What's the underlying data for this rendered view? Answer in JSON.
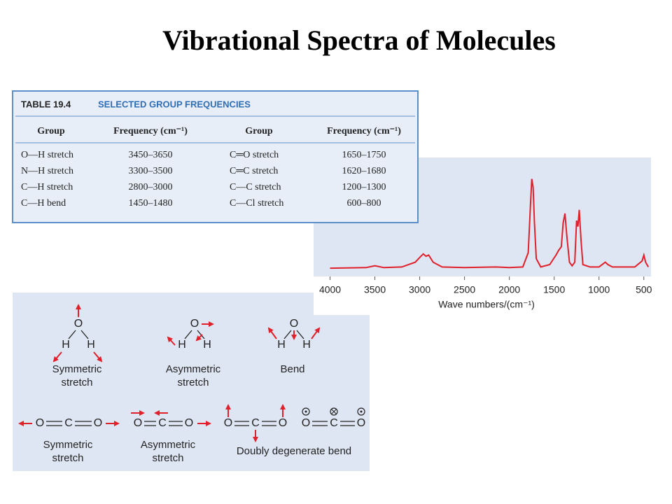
{
  "title": "Vibrational Spectra of Molecules",
  "table": {
    "label": "TABLE 19.4",
    "caption": "SELECTED GROUP FREQUENCIES",
    "headers": [
      "Group",
      "Frequency (cm⁻¹)",
      "Group",
      "Frequency (cm⁻¹)"
    ],
    "rows": [
      [
        "O—H stretch",
        "3450–3650",
        "C═O stretch",
        "1650–1750"
      ],
      [
        "N—H stretch",
        "3300–3500",
        "C═C stretch",
        "1620–1680"
      ],
      [
        "C—H stretch",
        "2800–3000",
        "C—C stretch",
        "1200–1300"
      ],
      [
        "C—H bend",
        "1450–1480",
        "C—Cl stretch",
        "600–800"
      ]
    ]
  },
  "chart_data": {
    "type": "line",
    "x_label": "Wave numbers/(cm⁻¹)",
    "xlim": [
      4090,
      420
    ],
    "xticks": [
      4000,
      3500,
      3000,
      2500,
      2000,
      1500,
      1000,
      500
    ],
    "ylim": [
      0,
      100
    ],
    "color": "#e0202a",
    "x": [
      4000,
      3600,
      3500,
      3400,
      3200,
      3050,
      3000,
      2960,
      2930,
      2900,
      2850,
      2750,
      2500,
      2150,
      2000,
      1850,
      1790,
      1765,
      1750,
      1735,
      1720,
      1700,
      1650,
      1550,
      1480,
      1450,
      1420,
      1400,
      1380,
      1360,
      1330,
      1300,
      1270,
      1250,
      1235,
      1220,
      1200,
      1180,
      1100,
      1000,
      930,
      900,
      850,
      700,
      600,
      520,
      500,
      480,
      450
    ],
    "values": [
      7,
      7.5,
      9,
      7.5,
      8,
      12,
      16,
      19,
      17,
      18,
      12,
      8,
      7.5,
      8,
      7.5,
      8,
      20,
      60,
      82,
      75,
      45,
      15,
      8,
      10,
      18,
      22,
      25,
      45,
      53,
      35,
      12,
      9,
      12,
      47,
      42,
      56,
      30,
      10,
      8,
      8,
      12,
      10,
      8,
      8,
      8,
      13,
      18,
      12,
      8
    ]
  },
  "diagrams": {
    "water": [
      {
        "atoms": [
          "O",
          "H",
          "H"
        ],
        "label": [
          "Symmetric",
          "stretch"
        ]
      },
      {
        "atoms": [
          "O",
          "H",
          "H"
        ],
        "label": [
          "Asymmetric",
          "stretch"
        ]
      },
      {
        "atoms": [
          "O",
          "H",
          "H"
        ],
        "label": [
          "Bend"
        ]
      }
    ],
    "co2": [
      {
        "atoms": [
          "O",
          "C",
          "O"
        ],
        "label": [
          "Symmetric",
          "stretch"
        ]
      },
      {
        "atoms": [
          "O",
          "C",
          "O"
        ],
        "label": [
          "Asymmetric",
          "stretch"
        ]
      },
      {
        "atoms": [
          "O",
          "C",
          "O"
        ],
        "label": [
          "Doubly degenerate bend"
        ]
      },
      {
        "atoms": [
          "O",
          "C",
          "O"
        ]
      }
    ]
  }
}
